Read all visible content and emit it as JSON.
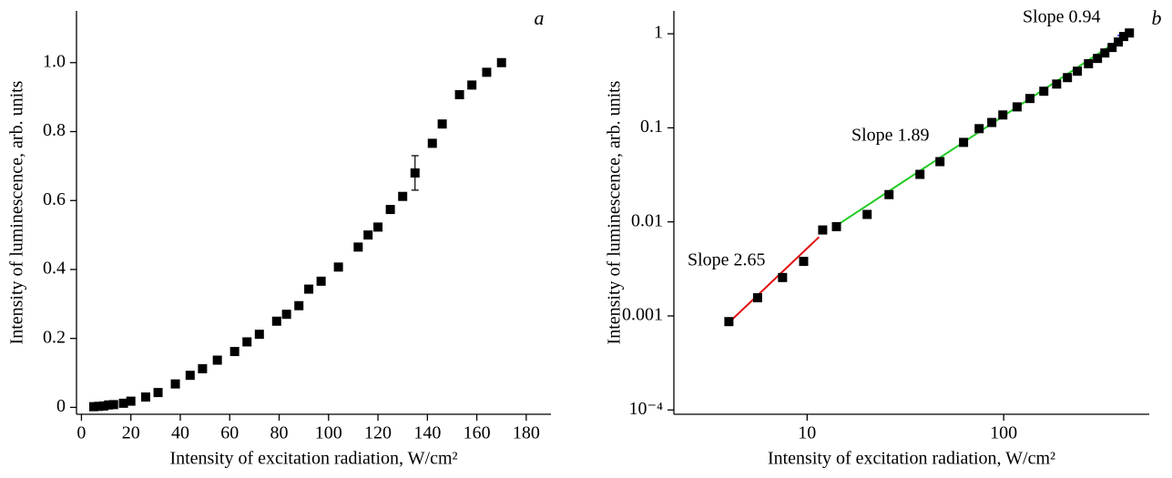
{
  "chart_data": [
    {
      "type": "scatter",
      "panel_label": "a",
      "xlabel": "Intensity of excitation radiation, W/cm²",
      "ylabel": "Intensity of luminescence, arb. units",
      "xlim": [
        -2,
        190
      ],
      "ylim": [
        -0.02,
        1.15
      ],
      "xticks": [
        0,
        20,
        40,
        60,
        80,
        100,
        120,
        140,
        160,
        180
      ],
      "yticks": [
        0,
        0.2,
        0.4,
        0.6,
        0.8,
        {
          "value": 1,
          "label": "1.0"
        }
      ],
      "color": "#000000",
      "x": [
        5,
        7,
        9,
        11,
        13,
        17,
        20,
        26,
        31,
        38,
        44,
        49,
        55,
        62,
        67,
        72,
        79,
        83,
        88,
        92,
        97,
        104,
        112,
        116,
        120,
        125,
        130,
        135,
        142,
        146,
        153,
        158,
        164,
        170
      ],
      "values": [
        0.002,
        0.003,
        0.004,
        0.007,
        0.008,
        0.012,
        0.018,
        0.03,
        0.043,
        0.068,
        0.093,
        0.112,
        0.137,
        0.162,
        0.19,
        0.212,
        0.25,
        0.27,
        0.295,
        0.343,
        0.366,
        0.407,
        0.465,
        0.5,
        0.523,
        0.574,
        0.612,
        0.68,
        0.766,
        0.822,
        0.907,
        0.935,
        0.972,
        1.0
      ],
      "errors": [
        null,
        null,
        null,
        null,
        null,
        null,
        null,
        null,
        null,
        null,
        null,
        null,
        null,
        null,
        null,
        null,
        null,
        null,
        null,
        null,
        null,
        null,
        null,
        null,
        null,
        null,
        null,
        0.05,
        null,
        null,
        null,
        null,
        null,
        null
      ]
    },
    {
      "type": "scatter",
      "panel_label": "b",
      "xscale": "log",
      "yscale": "log",
      "xlabel": "Intensity of excitation radiation, W/cm²",
      "ylabel": "Intensity of luminescence, arb. units",
      "xlim": [
        2.1,
        550
      ],
      "ylim": [
        9e-05,
        1.75
      ],
      "xticks": [
        10,
        100
      ],
      "yticks": [
        1,
        0.1,
        0.01,
        0.001,
        {
          "value": 0.0001,
          "label": "10⁻⁴"
        }
      ],
      "color": "#000000",
      "x": [
        4.0,
        5.6,
        7.5,
        9.6,
        12.0,
        14.1,
        20.2,
        26.1,
        37.5,
        47.4,
        62.5,
        75,
        87,
        99,
        117,
        136,
        160,
        186,
        211,
        237,
        270,
        300,
        327,
        356,
        383,
        408,
        436
      ],
      "values": [
        0.00087,
        0.00156,
        0.00256,
        0.0038,
        0.0082,
        0.0089,
        0.012,
        0.0195,
        0.032,
        0.0437,
        0.07,
        0.098,
        0.114,
        0.137,
        0.167,
        0.205,
        0.245,
        0.292,
        0.342,
        0.4,
        0.48,
        0.547,
        0.625,
        0.715,
        0.818,
        0.935,
        1.02
      ],
      "lines": [
        {
          "color": "#e01010",
          "x": [
            4.0,
            11.5
          ],
          "values": [
            0.00085,
            0.0069
          ]
        },
        {
          "color": "#22cc22",
          "x": [
            13.5,
            410
          ],
          "values": [
            0.0086,
            0.93
          ]
        },
        {
          "color": "#2020ff",
          "x": [
            380,
            440
          ],
          "values": [
            0.95,
            1.05
          ]
        }
      ],
      "annotations": [
        "Slope 2.65",
        "Slope 1.89",
        "Slope 0.94"
      ]
    }
  ]
}
